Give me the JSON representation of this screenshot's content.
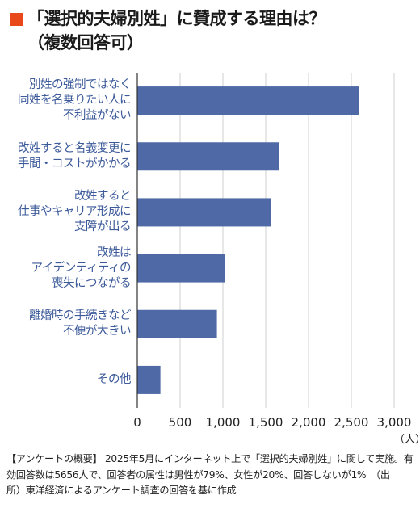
{
  "title": {
    "lines": [
      "「選択的夫婦別姓」に賛成する理由は？",
      "（複数回答可）"
    ]
  },
  "colors": {
    "bar": "#4e69a6",
    "label": "#3c5a9a",
    "accent": "#e8481a",
    "grid": "#cfcfcf"
  },
  "chart_data": {
    "type": "bar",
    "orientation": "horizontal",
    "categories": [
      {
        "lines": [
          "別姓の強制ではなく",
          "同姓を名乗りたい人に",
          "不利益がない"
        ]
      },
      {
        "lines": [
          "改姓すると名義変更に",
          "手間・コストがかかる"
        ]
      },
      {
        "lines": [
          "改姓すると",
          "仕事やキャリア形成に",
          "支障が出る"
        ]
      },
      {
        "lines": [
          "改姓は",
          "アイデンティティの",
          "喪失につながる"
        ]
      },
      {
        "lines": [
          "離婚時の手続きなど",
          "不便が大きい"
        ]
      },
      {
        "lines": [
          "その他"
        ]
      }
    ],
    "values": [
      2590,
      1660,
      1560,
      1020,
      930,
      270
    ],
    "xlim": [
      0,
      3000
    ],
    "ticks": [
      0,
      500,
      1000,
      1500,
      2000,
      2500,
      3000
    ],
    "tick_labels": [
      "0",
      "500",
      "1,000",
      "1,500",
      "2,000",
      "2,500",
      "3,000"
    ],
    "unit": "（人）",
    "grid": "vertical"
  },
  "note": {
    "lines": [
      "【アンケートの概要】 2025年5月にインターネット上で「選択的夫婦別姓」に関して実施。有",
      "効回答数は5656人で、回答者の属性は男性が79%、女性が20%、回答しないが1%　（出",
      "所）東洋経済によるアンケート調査の回答を基に作成"
    ]
  }
}
